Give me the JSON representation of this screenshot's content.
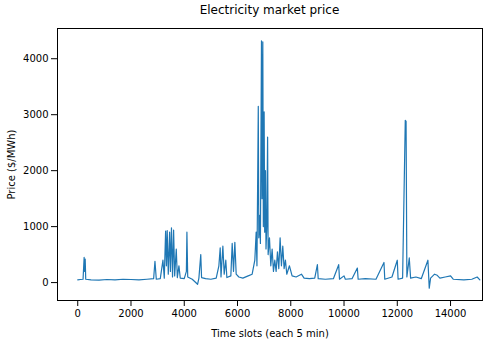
{
  "chart_data": {
    "type": "line",
    "title": "Electricity market price",
    "x_label": "Time slots (each 5 min)",
    "y_label": "Price ($/MWh)",
    "color": "#1f77b4",
    "xlim": [
      -760,
      15200
    ],
    "xticks": [
      0,
      2000,
      4000,
      6000,
      8000,
      10000,
      12000,
      14000
    ],
    "ylim": [
      -320,
      4540
    ],
    "yticks": [
      0,
      1000,
      2000,
      3000,
      4000
    ],
    "grid": false,
    "x": [
      0,
      100,
      200,
      240,
      260,
      280,
      300,
      500,
      800,
      1100,
      1400,
      1700,
      2000,
      2300,
      2600,
      2850,
      2900,
      2950,
      3100,
      3200,
      3250,
      3300,
      3330,
      3360,
      3400,
      3450,
      3480,
      3520,
      3560,
      3600,
      3640,
      3700,
      3740,
      3800,
      3850,
      4000,
      4080,
      4100,
      4130,
      4300,
      4500,
      4550,
      4620,
      4650,
      4800,
      5000,
      5200,
      5300,
      5350,
      5380,
      5450,
      5500,
      5560,
      5600,
      5750,
      5800,
      5850,
      5900,
      5950,
      6050,
      6200,
      6400,
      6550,
      6650,
      6700,
      6730,
      6780,
      6800,
      6830,
      6860,
      6900,
      6920,
      6950,
      6970,
      7000,
      7020,
      7050,
      7070,
      7100,
      7130,
      7150,
      7200,
      7250,
      7300,
      7350,
      7400,
      7450,
      7500,
      7550,
      7600,
      7650,
      7700,
      7750,
      7800,
      7850,
      7950,
      8050,
      8200,
      8400,
      8500,
      8700,
      8900,
      9000,
      9030,
      9300,
      9600,
      9800,
      9830,
      10000,
      10050,
      10300,
      10500,
      10530,
      10800,
      11200,
      11500,
      11530,
      11800,
      12000,
      12030,
      12200,
      12300,
      12330,
      12360,
      12450,
      12500,
      12700,
      12900,
      13150,
      13200,
      13250,
      13400,
      13500,
      13600,
      13800,
      14000,
      14100,
      14500,
      14800,
      15000,
      15100
    ],
    "values": [
      50,
      55,
      60,
      450,
      200,
      420,
      60,
      50,
      45,
      55,
      50,
      60,
      55,
      50,
      60,
      70,
      380,
      60,
      70,
      400,
      80,
      920,
      300,
      930,
      150,
      900,
      200,
      980,
      100,
      940,
      120,
      600,
      90,
      300,
      80,
      70,
      200,
      900,
      100,
      60,
      -30,
      80,
      500,
      90,
      70,
      60,
      80,
      300,
      620,
      100,
      650,
      150,
      400,
      90,
      120,
      700,
      200,
      720,
      150,
      100,
      80,
      120,
      150,
      400,
      900,
      300,
      3150,
      800,
      1200,
      700,
      4320,
      1500,
      4300,
      1000,
      3050,
      900,
      2000,
      600,
      1000,
      2600,
      500,
      800,
      300,
      600,
      200,
      400,
      200,
      550,
      250,
      800,
      300,
      650,
      250,
      400,
      150,
      300,
      120,
      100,
      150,
      80,
      70,
      80,
      320,
      70,
      60,
      70,
      320,
      60,
      120,
      60,
      70,
      260,
      60,
      70,
      60,
      360,
      60,
      100,
      400,
      60,
      80,
      2900,
      2880,
      100,
      440,
      80,
      100,
      70,
      400,
      -100,
      80,
      150,
      130,
      80,
      100,
      120,
      60,
      50,
      60,
      100,
      50
    ]
  }
}
